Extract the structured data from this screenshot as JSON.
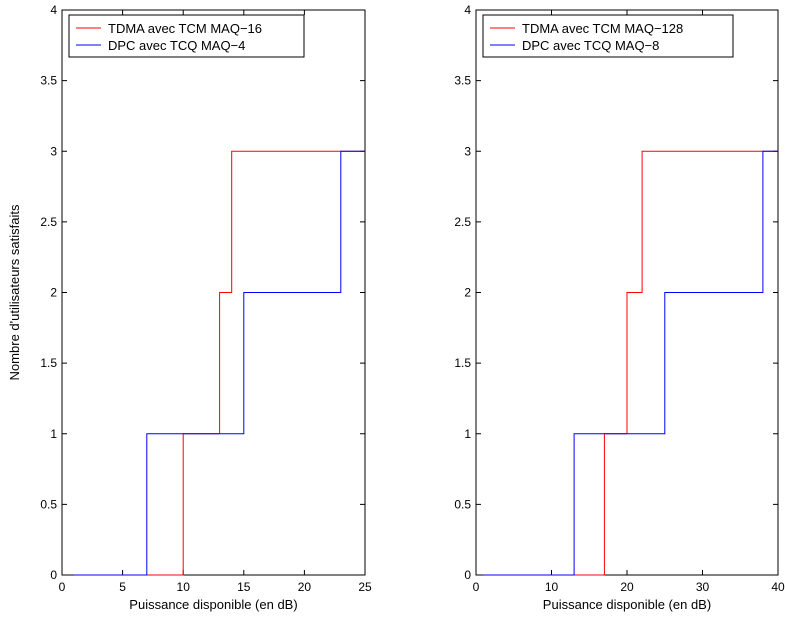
{
  "chart_data": [
    {
      "type": "line",
      "step": true,
      "xlabel": "Puissance disponible (en dB)",
      "ylabel": "Nombre d'utilisateurs satisfaits",
      "xlim": [
        0,
        25
      ],
      "ylim": [
        0,
        4
      ],
      "xticks": [
        0,
        5,
        10,
        15,
        20,
        25
      ],
      "yticks": [
        0,
        0.5,
        1,
        1.5,
        2,
        2.5,
        3,
        3.5,
        4
      ],
      "grid": false,
      "legend_position": "top-left",
      "series": [
        {
          "name": "TDMA avec TCM MAQ−16",
          "color": "#ff0000",
          "x": [
            1,
            10,
            10,
            13,
            13,
            14,
            14,
            25
          ],
          "y": [
            0,
            0,
            1,
            1,
            2,
            2,
            3,
            3
          ]
        },
        {
          "name": "DPC avec TCQ MAQ−4",
          "color": "#0000ff",
          "x": [
            1,
            7,
            7,
            15,
            15,
            23,
            23,
            25
          ],
          "y": [
            0,
            0,
            1,
            1,
            2,
            2,
            3,
            3
          ]
        }
      ]
    },
    {
      "type": "line",
      "step": true,
      "xlabel": "Puissance disponible (en dB)",
      "ylabel": "",
      "xlim": [
        0,
        40
      ],
      "ylim": [
        0,
        4
      ],
      "xticks": [
        0,
        10,
        20,
        30,
        40
      ],
      "yticks": [
        0,
        0.5,
        1,
        1.5,
        2,
        2.5,
        3,
        3.5,
        4
      ],
      "grid": false,
      "legend_position": "top-left",
      "series": [
        {
          "name": "TDMA avec TCM MAQ−128",
          "color": "#ff0000",
          "x": [
            1,
            17,
            17,
            20,
            20,
            22,
            22,
            40
          ],
          "y": [
            0,
            0,
            1,
            1,
            2,
            2,
            3,
            3
          ]
        },
        {
          "name": "DPC avec TCQ MAQ−8",
          "color": "#0000ff",
          "x": [
            1,
            13,
            13,
            25,
            25,
            38,
            38,
            40
          ],
          "y": [
            0,
            0,
            1,
            1,
            2,
            2,
            3,
            3
          ]
        }
      ]
    }
  ]
}
